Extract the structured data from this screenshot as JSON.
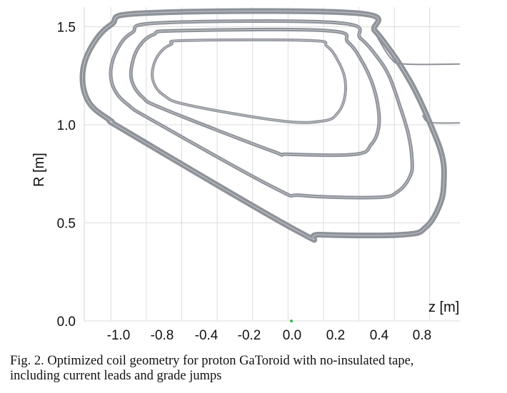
{
  "chart_data": {
    "type": "line",
    "xlabel": "z [m]",
    "ylabel": "R [m]",
    "x_ticks": [
      "-1.0",
      "-0.8",
      "-0.4",
      "-0.2",
      "0.0",
      "0.2",
      "0.4",
      "0.8"
    ],
    "y_ticks": [
      "1.5",
      "1.0",
      "0.5",
      "0.0"
    ],
    "x_grid_values": [
      -1.0,
      -0.8,
      -0.6,
      -0.4,
      -0.2,
      0.0,
      0.2,
      0.4,
      0.6,
      0.8
    ],
    "y_grid_values": [
      0.0,
      0.5,
      1.0,
      1.5
    ],
    "xlim": [
      -1.15,
      0.97
    ],
    "ylim": [
      0.0,
      1.6
    ],
    "grid": true,
    "line_color": "#8e9299",
    "series": [
      {
        "points": [
          [
            -0.8,
            1.57
          ],
          [
            0.38,
            1.57
          ],
          [
            0.49,
            1.48
          ],
          [
            0.56,
            1.4
          ],
          [
            0.63,
            1.31
          ],
          [
            0.72,
            1.17
          ],
          [
            0.81,
            0.99
          ],
          [
            0.87,
            0.84
          ],
          [
            0.88,
            0.72
          ],
          [
            0.86,
            0.6
          ],
          [
            0.78,
            0.48
          ],
          [
            0.65,
            0.44
          ],
          [
            0.18,
            0.44
          ],
          [
            0.05,
            0.46
          ],
          [
            -0.9,
            0.96
          ],
          [
            -1.0,
            1.02
          ],
          [
            -1.12,
            1.11
          ],
          [
            -1.16,
            1.24
          ],
          [
            -1.12,
            1.38
          ],
          [
            -1.0,
            1.51
          ],
          [
            -0.8,
            1.57
          ]
        ]
      },
      {
        "points": [
          [
            -0.72,
            1.52
          ],
          [
            0.28,
            1.52
          ],
          [
            0.41,
            1.44
          ],
          [
            0.5,
            1.35
          ],
          [
            0.57,
            1.25
          ],
          [
            0.63,
            1.1
          ],
          [
            0.68,
            0.95
          ],
          [
            0.7,
            0.82
          ],
          [
            0.69,
            0.74
          ],
          [
            0.62,
            0.66
          ],
          [
            0.5,
            0.63
          ],
          [
            0.08,
            0.64
          ],
          [
            -0.08,
            0.68
          ],
          [
            -0.76,
            1.02
          ],
          [
            -0.9,
            1.1
          ],
          [
            -0.98,
            1.18
          ],
          [
            -1.0,
            1.28
          ],
          [
            -0.96,
            1.39
          ],
          [
            -0.88,
            1.47
          ],
          [
            -0.72,
            1.52
          ]
        ]
      },
      {
        "points": [
          [
            -0.62,
            1.48
          ],
          [
            0.22,
            1.48
          ],
          [
            0.34,
            1.42
          ],
          [
            0.42,
            1.32
          ],
          [
            0.48,
            1.2
          ],
          [
            0.51,
            1.08
          ],
          [
            0.51,
            0.98
          ],
          [
            0.47,
            0.9
          ],
          [
            0.38,
            0.85
          ],
          [
            0.0,
            0.85
          ],
          [
            -0.1,
            0.87
          ],
          [
            -0.7,
            1.08
          ],
          [
            -0.82,
            1.14
          ],
          [
            -0.88,
            1.22
          ],
          [
            -0.88,
            1.31
          ],
          [
            -0.84,
            1.4
          ],
          [
            -0.76,
            1.46
          ],
          [
            -0.62,
            1.48
          ]
        ]
      },
      {
        "points": [
          [
            -0.58,
            1.43
          ],
          [
            0.12,
            1.43
          ],
          [
            0.22,
            1.4
          ],
          [
            0.28,
            1.33
          ],
          [
            0.32,
            1.24
          ],
          [
            0.32,
            1.14
          ],
          [
            0.28,
            1.06
          ],
          [
            0.2,
            1.02
          ],
          [
            -0.04,
            1.02
          ],
          [
            -0.56,
            1.1
          ],
          [
            -0.7,
            1.15
          ],
          [
            -0.76,
            1.22
          ],
          [
            -0.76,
            1.3
          ],
          [
            -0.72,
            1.37
          ],
          [
            -0.66,
            1.41
          ],
          [
            -0.58,
            1.43
          ]
        ]
      },
      {
        "points": [
          [
            0.49,
            1.47
          ],
          [
            0.58,
            1.34
          ],
          [
            0.66,
            1.31
          ],
          [
            0.97,
            1.31
          ]
        ]
      },
      {
        "points": [
          [
            0.76,
            1.05
          ],
          [
            0.78,
            1.02
          ],
          [
            0.83,
            1.01
          ],
          [
            0.97,
            1.01
          ]
        ]
      }
    ]
  },
  "caption": {
    "line1": "Fig. 2. Optimized coil geometry for proton GaToroid with no-insulated tape,",
    "line2": "including current leads and grade jumps"
  }
}
